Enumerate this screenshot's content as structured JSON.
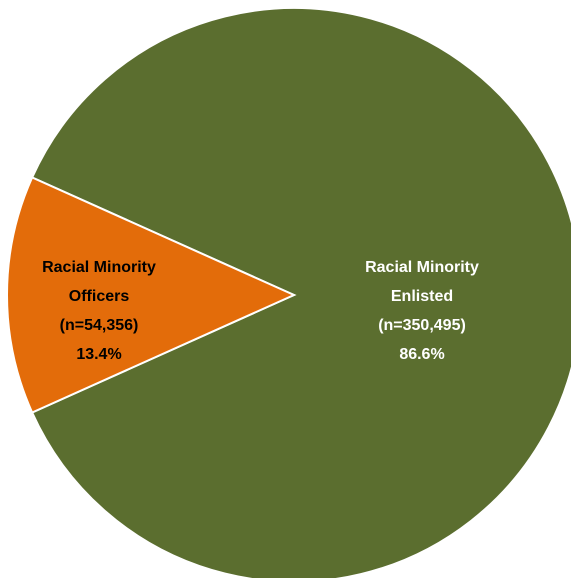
{
  "chart_data": {
    "type": "pie",
    "title": "",
    "slices": [
      {
        "label": "Racial Minority Enlisted",
        "label_lines": [
          "Racial Minority",
          "Enlisted",
          "(n=350,495)",
          "86.6%"
        ],
        "n": 350495,
        "percent": 86.6,
        "color": "#5b6e2f",
        "label_color": "#ffffff"
      },
      {
        "label": "Racial Minority Officers",
        "label_lines": [
          "Racial Minority",
          "Officers",
          "(n=54,356)",
          "13.4%"
        ],
        "n": 54356,
        "percent": 13.4,
        "color": "#e36c0a",
        "label_color": "#000000"
      }
    ],
    "legend": "none"
  }
}
